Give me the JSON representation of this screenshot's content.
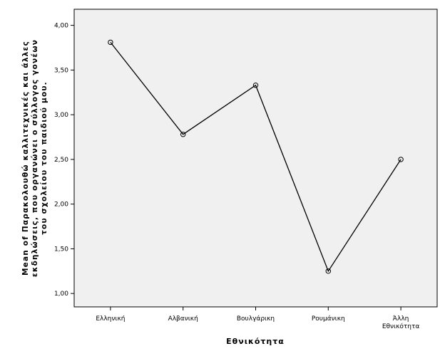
{
  "chart_data": {
    "type": "line",
    "title": "",
    "xlabel": "Εθνικότητα",
    "ylabel_lines": [
      "Mean of Παρακολουθώ καλλιτεχνικές και άλλες",
      "εκδηλώσεις, που οργανώνει ο σύλλογος γονέων",
      "του σχολείου του παιδιού μου."
    ],
    "categories": [
      [
        "Ελληνική"
      ],
      [
        "Αλβανική"
      ],
      [
        "Βουλγάρικη"
      ],
      [
        "Ρουμάνικη"
      ],
      [
        "Άλλη",
        "Εθνικότητα"
      ]
    ],
    "series": [
      {
        "values": [
          3.81,
          2.78,
          3.33,
          1.25,
          2.5
        ]
      }
    ],
    "ylim": [
      0.85,
      4.18
    ],
    "yticks": [
      1.0,
      1.5,
      2.0,
      2.5,
      3.0,
      3.5,
      4.0
    ],
    "ytick_labels": [
      "1,00",
      "1,50",
      "2,00",
      "2,50",
      "3,00",
      "3,50",
      "4,00"
    ],
    "grid": false,
    "plot_background": "#f0f0f0",
    "line_color": "#000000",
    "marker": "open-circle"
  }
}
